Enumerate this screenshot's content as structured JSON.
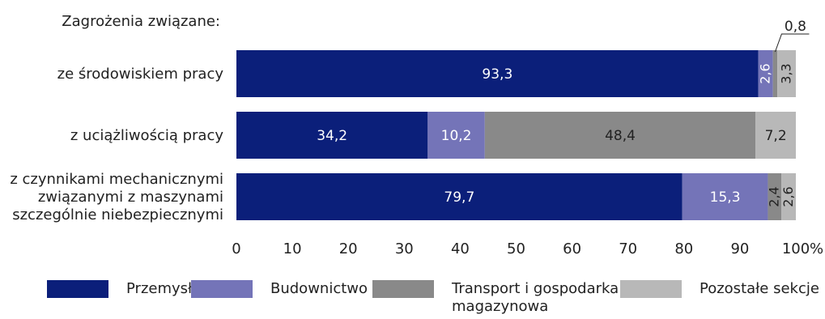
{
  "chart_data": {
    "type": "bar",
    "orientation": "horizontal",
    "stacked": true,
    "title": "Zagrożenia związane:",
    "categories": [
      [
        "ze środowiskiem pracy"
      ],
      [
        "z uciążliwością pracy"
      ],
      [
        "z czynnikami mechanicznymi",
        "związanymi z maszynami",
        "szczególnie niebezpiecznymi"
      ]
    ],
    "series": [
      {
        "name": "Przemysł",
        "color": "#0b1f7a",
        "values": [
          93.3,
          34.2,
          79.7
        ],
        "labels": [
          "93,3",
          "34,2",
          "79,7"
        ]
      },
      {
        "name": "Budownictwo",
        "color": "#7474b8",
        "values": [
          2.6,
          10.2,
          15.3
        ],
        "labels": [
          "2,6",
          "10,2",
          "15,3"
        ]
      },
      {
        "name": "Transport i gospodarka magazynowa",
        "color": "#898989",
        "values": [
          0.8,
          48.4,
          2.4
        ],
        "labels": [
          "0,8",
          "48,4",
          "2,4"
        ]
      },
      {
        "name": "Pozostałe sekcje",
        "color": "#b8b8b8",
        "values": [
          3.3,
          7.2,
          2.6
        ],
        "labels": [
          "3,3",
          "7,2",
          "2,6"
        ]
      }
    ],
    "xlim": [
      0,
      100
    ],
    "xticks": [
      0,
      10,
      20,
      30,
      40,
      50,
      60,
      70,
      80,
      90,
      100
    ],
    "xunit": "%",
    "legend_position": "bottom",
    "legend_lines": [
      [
        "Przemysł"
      ],
      [
        "Budownictwo"
      ],
      [
        "Transport i gospodarka",
        "magazynowa"
      ],
      [
        "Pozostałe sekcje"
      ]
    ]
  }
}
